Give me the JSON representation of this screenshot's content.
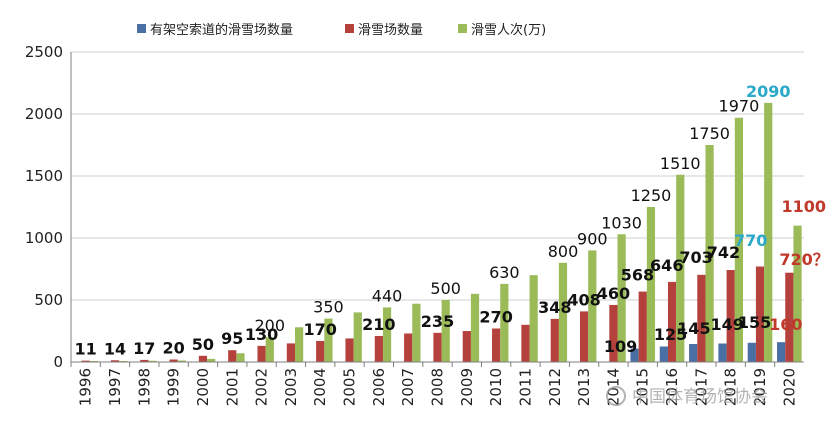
{
  "chart_data": {
    "type": "bar",
    "categories": [
      "1996",
      "1997",
      "1998",
      "1999",
      "2000",
      "2001",
      "2002",
      "2003",
      "2004",
      "2005",
      "2006",
      "2007",
      "2008",
      "2009",
      "2010",
      "2011",
      "2012",
      "2013",
      "2014",
      "2015",
      "2016",
      "2017",
      "2018",
      "2019",
      "2020"
    ],
    "series": [
      {
        "name": "有架空索道的滑雪场数量",
        "values": [
          0,
          0,
          0,
          0,
          0,
          0,
          0,
          0,
          0,
          0,
          0,
          0,
          0,
          0,
          0,
          0,
          0,
          0,
          0,
          109,
          125,
          145,
          149,
          155,
          160
        ]
      },
      {
        "name": "滑雪场数量",
        "values": [
          11,
          14,
          17,
          20,
          50,
          95,
          130,
          150,
          170,
          190,
          210,
          230,
          235,
          250,
          270,
          300,
          348,
          408,
          460,
          568,
          646,
          703,
          742,
          770,
          720
        ]
      },
      {
        "name": "滑雪人次(万)",
        "values": [
          8,
          8,
          10,
          12,
          25,
          70,
          200,
          280,
          350,
          400,
          440,
          470,
          500,
          550,
          630,
          700,
          800,
          900,
          1030,
          1250,
          1510,
          1750,
          1970,
          2090,
          1100
        ]
      }
    ],
    "ylim": [
      0,
      2500
    ],
    "yticks": [
      0,
      500,
      1000,
      1500,
      2000,
      2500
    ],
    "grid": true,
    "legend_position": "top",
    "colors": {
      "cable": "#4a6fa5",
      "resorts": "#b5413c",
      "visits": "#9bbb59",
      "text": "#111111",
      "cyan": "#2aa9c9",
      "red": "#c0392b",
      "grid": "#cfcfcf",
      "axis": "#7f7f7f"
    },
    "data_labels": [
      {
        "series": 1,
        "index": 0,
        "text": "11"
      },
      {
        "series": 1,
        "index": 1,
        "text": "14"
      },
      {
        "series": 1,
        "index": 2,
        "text": "17"
      },
      {
        "series": 1,
        "index": 3,
        "text": "20"
      },
      {
        "series": 1,
        "index": 4,
        "text": "50"
      },
      {
        "series": 1,
        "index": 5,
        "text": "95"
      },
      {
        "series": 1,
        "index": 6,
        "text": "130"
      },
      {
        "series": 1,
        "index": 8,
        "text": "170"
      },
      {
        "series": 1,
        "index": 10,
        "text": "210"
      },
      {
        "series": 1,
        "index": 12,
        "text": "235"
      },
      {
        "series": 1,
        "index": 14,
        "text": "270"
      },
      {
        "series": 1,
        "index": 16,
        "text": "348"
      },
      {
        "series": 1,
        "index": 17,
        "text": "408"
      },
      {
        "series": 1,
        "index": 18,
        "text": "460"
      },
      {
        "series": 1,
        "index": 19,
        "text": "568"
      },
      {
        "series": 1,
        "index": 20,
        "text": "646"
      },
      {
        "series": 1,
        "index": 21,
        "text": "703"
      },
      {
        "series": 1,
        "index": 22,
        "text": "742"
      },
      {
        "series": 1,
        "index": 23,
        "text": "770",
        "color": "cyan"
      },
      {
        "series": 1,
        "index": 24,
        "text": "720？",
        "color": "red"
      },
      {
        "series": 2,
        "index": 6,
        "text": "200"
      },
      {
        "series": 2,
        "index": 8,
        "text": "350"
      },
      {
        "series": 2,
        "index": 10,
        "text": "440"
      },
      {
        "series": 2,
        "index": 12,
        "text": "500"
      },
      {
        "series": 2,
        "index": 14,
        "text": "630"
      },
      {
        "series": 2,
        "index": 16,
        "text": "800"
      },
      {
        "series": 2,
        "index": 17,
        "text": "900"
      },
      {
        "series": 2,
        "index": 18,
        "text": "1030"
      },
      {
        "series": 2,
        "index": 19,
        "text": "1250"
      },
      {
        "series": 2,
        "index": 20,
        "text": "1510"
      },
      {
        "series": 2,
        "index": 21,
        "text": "1750"
      },
      {
        "series": 2,
        "index": 22,
        "text": "1970"
      },
      {
        "series": 2,
        "index": 23,
        "text": "2090",
        "color": "cyan"
      },
      {
        "series": 2,
        "index": 24,
        "text": "1100",
        "color": "red"
      },
      {
        "series": 0,
        "index": 19,
        "text": "109"
      },
      {
        "series": 0,
        "index": 20,
        "text": "125"
      },
      {
        "series": 0,
        "index": 21,
        "text": "145"
      },
      {
        "series": 0,
        "index": 22,
        "text": "149"
      },
      {
        "series": 0,
        "index": 23,
        "text": "155"
      },
      {
        "series": 0,
        "index": 24,
        "text": "160",
        "color": "red"
      }
    ]
  },
  "watermark": "中国体育场馆协会"
}
